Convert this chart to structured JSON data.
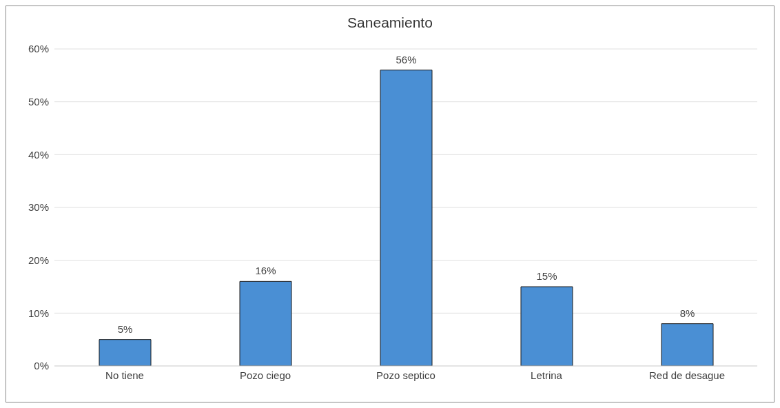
{
  "chart_data": {
    "type": "bar",
    "title": "Saneamiento",
    "categories": [
      "No tiene",
      "Pozo ciego",
      "Pozo septico",
      "Letrina",
      "Red de desague"
    ],
    "values": [
      5,
      16,
      56,
      15,
      8
    ],
    "value_labels": [
      "5%",
      "16%",
      "56%",
      "15%",
      "8%"
    ],
    "color": "#4a8fd4",
    "ylim": [
      0,
      60
    ],
    "yticks": [
      {
        "value": 0,
        "label": "0%"
      },
      {
        "value": 10,
        "label": "10%"
      },
      {
        "value": 20,
        "label": "20%"
      },
      {
        "value": 30,
        "label": "30%"
      },
      {
        "value": 40,
        "label": "40%"
      },
      {
        "value": 50,
        "label": "50%"
      },
      {
        "value": 60,
        "label": "60%"
      }
    ],
    "grid": "y"
  }
}
